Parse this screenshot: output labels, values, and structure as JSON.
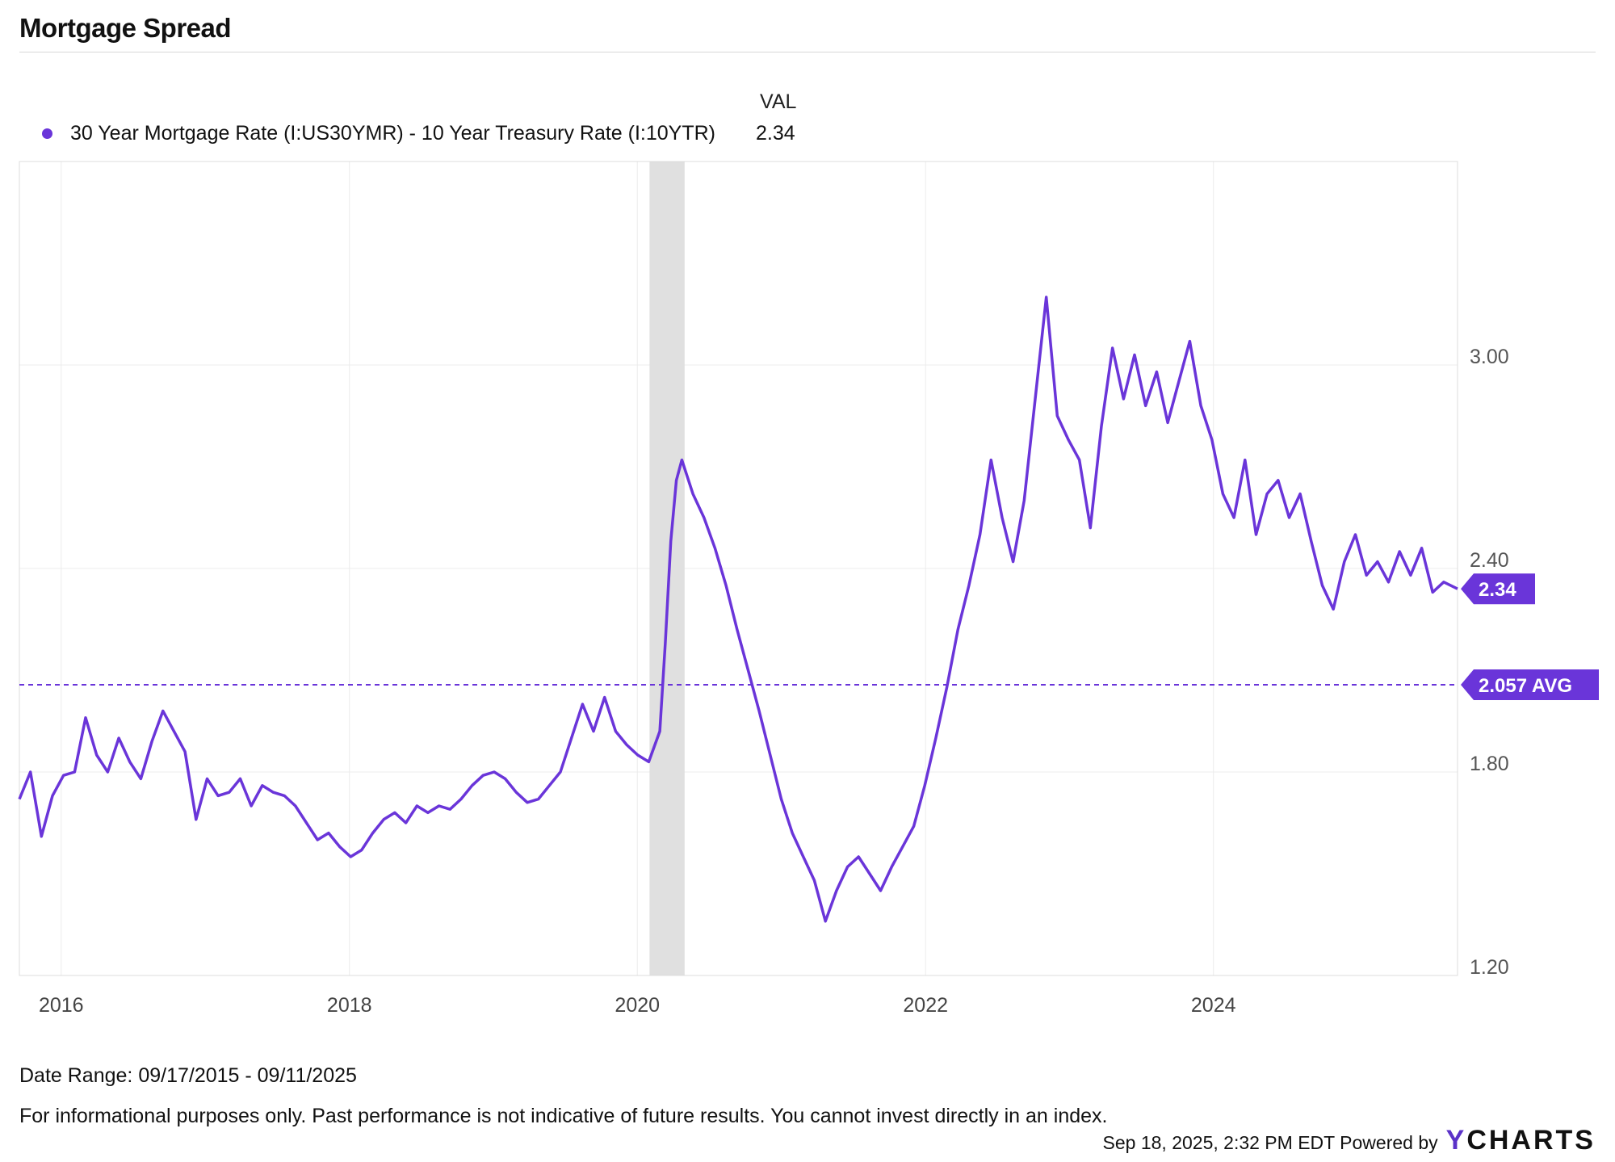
{
  "header": {
    "title": "Mortgage Spread"
  },
  "legend": {
    "value_header": "VAL",
    "items": [
      {
        "name": "30 Year Mortgage Rate (I:US30YMR) - 10 Year Treasury Rate (I:10YTR)",
        "value": "2.34",
        "color": "#6a35d9"
      }
    ]
  },
  "chart_data": {
    "type": "line",
    "title": "Mortgage Spread",
    "x_tick_labels": [
      "2016",
      "2018",
      "2020",
      "2022",
      "2024"
    ],
    "y_tick_labels": [
      "3.00",
      "2.40",
      "1.80",
      "1.20"
    ],
    "xlim": [
      "2015-09-17",
      "2025-09-11"
    ],
    "ylim": [
      1.2,
      3.6
    ],
    "grid": true,
    "legend_position": "top-left",
    "recession_band": {
      "start": "2020-02-01",
      "end": "2020-04-30"
    },
    "average": {
      "value": 2.057,
      "label": "2.057 AVG"
    },
    "last_value": {
      "value": 2.34,
      "label": "2.34"
    },
    "series": [
      {
        "name": "30 Year Mortgage Rate (I:US30YMR) - 10 Year Treasury Rate (I:10YTR)",
        "color": "#6a35d9",
        "points": [
          [
            "2015-09-17",
            1.72
          ],
          [
            "2015-10-15",
            1.8
          ],
          [
            "2015-11-12",
            1.61
          ],
          [
            "2015-12-10",
            1.73
          ],
          [
            "2016-01-07",
            1.79
          ],
          [
            "2016-02-04",
            1.8
          ],
          [
            "2016-03-03",
            1.96
          ],
          [
            "2016-03-31",
            1.85
          ],
          [
            "2016-04-28",
            1.8
          ],
          [
            "2016-05-26",
            1.9
          ],
          [
            "2016-06-23",
            1.83
          ],
          [
            "2016-07-21",
            1.78
          ],
          [
            "2016-08-18",
            1.89
          ],
          [
            "2016-09-15",
            1.98
          ],
          [
            "2016-10-13",
            1.92
          ],
          [
            "2016-11-10",
            1.86
          ],
          [
            "2016-12-08",
            1.66
          ],
          [
            "2017-01-05",
            1.78
          ],
          [
            "2017-02-02",
            1.73
          ],
          [
            "2017-03-02",
            1.74
          ],
          [
            "2017-03-30",
            1.78
          ],
          [
            "2017-04-27",
            1.7
          ],
          [
            "2017-05-25",
            1.76
          ],
          [
            "2017-06-22",
            1.74
          ],
          [
            "2017-07-20",
            1.73
          ],
          [
            "2017-08-17",
            1.7
          ],
          [
            "2017-09-14",
            1.65
          ],
          [
            "2017-10-12",
            1.6
          ],
          [
            "2017-11-09",
            1.62
          ],
          [
            "2017-12-07",
            1.58
          ],
          [
            "2018-01-04",
            1.55
          ],
          [
            "2018-02-01",
            1.57
          ],
          [
            "2018-03-01",
            1.62
          ],
          [
            "2018-03-29",
            1.66
          ],
          [
            "2018-04-26",
            1.68
          ],
          [
            "2018-05-24",
            1.65
          ],
          [
            "2018-06-21",
            1.7
          ],
          [
            "2018-07-19",
            1.68
          ],
          [
            "2018-08-16",
            1.7
          ],
          [
            "2018-09-13",
            1.69
          ],
          [
            "2018-10-11",
            1.72
          ],
          [
            "2018-11-08",
            1.76
          ],
          [
            "2018-12-06",
            1.79
          ],
          [
            "2019-01-03",
            1.8
          ],
          [
            "2019-01-31",
            1.78
          ],
          [
            "2019-02-28",
            1.74
          ],
          [
            "2019-03-28",
            1.71
          ],
          [
            "2019-04-25",
            1.72
          ],
          [
            "2019-05-23",
            1.76
          ],
          [
            "2019-06-20",
            1.8
          ],
          [
            "2019-07-18",
            1.9
          ],
          [
            "2019-08-15",
            2.0
          ],
          [
            "2019-09-12",
            1.92
          ],
          [
            "2019-10-10",
            2.02
          ],
          [
            "2019-11-07",
            1.92
          ],
          [
            "2019-12-05",
            1.88
          ],
          [
            "2020-01-02",
            1.85
          ],
          [
            "2020-01-30",
            1.83
          ],
          [
            "2020-02-27",
            1.92
          ],
          [
            "2020-03-12",
            2.18
          ],
          [
            "2020-03-26",
            2.48
          ],
          [
            "2020-04-09",
            2.66
          ],
          [
            "2020-04-23",
            2.72
          ],
          [
            "2020-05-21",
            2.62
          ],
          [
            "2020-06-18",
            2.55
          ],
          [
            "2020-07-16",
            2.46
          ],
          [
            "2020-08-13",
            2.35
          ],
          [
            "2020-09-10",
            2.22
          ],
          [
            "2020-10-08",
            2.1
          ],
          [
            "2020-11-05",
            1.98
          ],
          [
            "2020-12-03",
            1.85
          ],
          [
            "2020-12-31",
            1.72
          ],
          [
            "2021-01-28",
            1.62
          ],
          [
            "2021-02-25",
            1.55
          ],
          [
            "2021-03-25",
            1.48
          ],
          [
            "2021-04-22",
            1.36
          ],
          [
            "2021-05-20",
            1.45
          ],
          [
            "2021-06-17",
            1.52
          ],
          [
            "2021-07-15",
            1.55
          ],
          [
            "2021-08-12",
            1.5
          ],
          [
            "2021-09-09",
            1.45
          ],
          [
            "2021-10-07",
            1.52
          ],
          [
            "2021-11-04",
            1.58
          ],
          [
            "2021-12-02",
            1.64
          ],
          [
            "2021-12-30",
            1.76
          ],
          [
            "2022-01-27",
            1.9
          ],
          [
            "2022-02-24",
            2.05
          ],
          [
            "2022-03-24",
            2.22
          ],
          [
            "2022-04-21",
            2.35
          ],
          [
            "2022-05-19",
            2.5
          ],
          [
            "2022-06-16",
            2.72
          ],
          [
            "2022-07-14",
            2.55
          ],
          [
            "2022-08-11",
            2.42
          ],
          [
            "2022-09-08",
            2.6
          ],
          [
            "2022-10-06",
            2.9
          ],
          [
            "2022-11-03",
            3.2
          ],
          [
            "2022-12-01",
            2.85
          ],
          [
            "2022-12-29",
            2.78
          ],
          [
            "2023-01-26",
            2.72
          ],
          [
            "2023-02-23",
            2.52
          ],
          [
            "2023-03-23",
            2.82
          ],
          [
            "2023-04-20",
            3.05
          ],
          [
            "2023-05-18",
            2.9
          ],
          [
            "2023-06-15",
            3.03
          ],
          [
            "2023-07-13",
            2.88
          ],
          [
            "2023-08-10",
            2.98
          ],
          [
            "2023-09-07",
            2.83
          ],
          [
            "2023-10-05",
            2.95
          ],
          [
            "2023-11-02",
            3.07
          ],
          [
            "2023-11-30",
            2.88
          ],
          [
            "2023-12-28",
            2.78
          ],
          [
            "2024-01-25",
            2.62
          ],
          [
            "2024-02-22",
            2.55
          ],
          [
            "2024-03-21",
            2.72
          ],
          [
            "2024-04-18",
            2.5
          ],
          [
            "2024-05-16",
            2.62
          ],
          [
            "2024-06-13",
            2.66
          ],
          [
            "2024-07-11",
            2.55
          ],
          [
            "2024-08-08",
            2.62
          ],
          [
            "2024-09-05",
            2.48
          ],
          [
            "2024-10-03",
            2.35
          ],
          [
            "2024-10-31",
            2.28
          ],
          [
            "2024-11-28",
            2.42
          ],
          [
            "2024-12-26",
            2.5
          ],
          [
            "2025-01-23",
            2.38
          ],
          [
            "2025-02-20",
            2.42
          ],
          [
            "2025-03-20",
            2.36
          ],
          [
            "2025-04-17",
            2.45
          ],
          [
            "2025-05-15",
            2.38
          ],
          [
            "2025-06-12",
            2.46
          ],
          [
            "2025-07-10",
            2.33
          ],
          [
            "2025-08-07",
            2.36
          ],
          [
            "2025-09-11",
            2.34
          ]
        ]
      }
    ]
  },
  "footer": {
    "date_range": "Date Range: 09/17/2015 - 09/11/2025",
    "disclaimer": "For informational purposes only. Past performance is not indicative of future results. You cannot invest directly in an index.",
    "timestamp": "Sep 18, 2025, 2:32 PM EDT Powered by",
    "brand_y": "Y",
    "brand_rest": "CHARTS"
  }
}
